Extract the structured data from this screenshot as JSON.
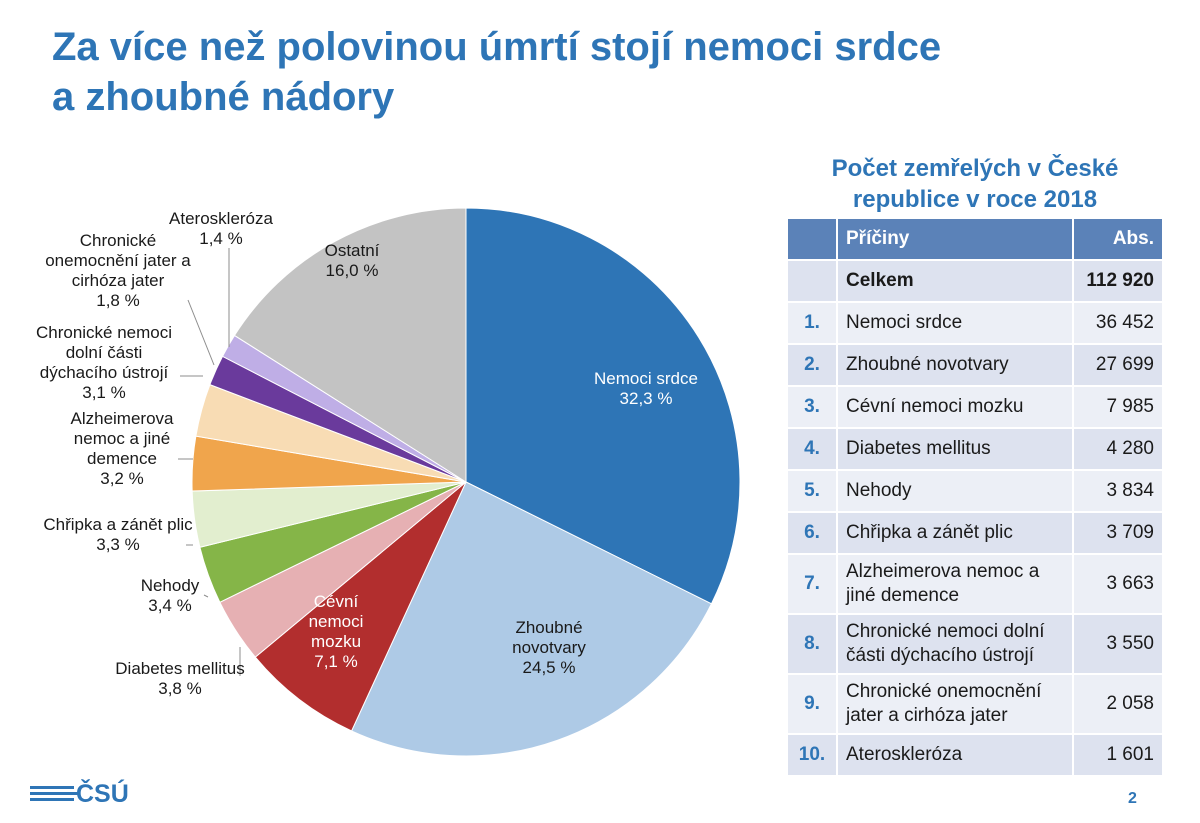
{
  "slide": {
    "title_line1": "Za více než polovinou úmrtí stojí nemoci srdce",
    "title_line2": "a zhoubné nádory",
    "logo_text": "ČSÚ",
    "page_number": "2"
  },
  "chart_data": {
    "type": "pie",
    "start": "12 o'clock, clockwise",
    "slices": [
      {
        "label": [
          "Nemoci srdce"
        ],
        "value_text": "32,3 %",
        "value": 32.3,
        "color": "#2e75b6",
        "text_color": "#ffffff",
        "label_pos": "inside"
      },
      {
        "label": [
          "Zhoubné",
          "novotvary"
        ],
        "value_text": "24,5 %",
        "value": 24.5,
        "color": "#aecae6",
        "text_color": "#1a1a1a",
        "label_pos": "inside"
      },
      {
        "label": [
          "Cévní",
          "nemoci",
          "mozku"
        ],
        "value_text": "7,1 %",
        "value": 7.1,
        "color": "#b22e2e",
        "text_color": "#ffffff",
        "label_pos": "inside"
      },
      {
        "label": [
          "Diabetes mellitus"
        ],
        "value_text": "3,8 %",
        "value": 3.8,
        "color": "#e6b0b3",
        "text_color": "#1a1a1a",
        "label_pos": "outside"
      },
      {
        "label": [
          "Nehody"
        ],
        "value_text": "3,4 %",
        "value": 3.4,
        "color": "#85b548",
        "text_color": "#1a1a1a",
        "label_pos": "outside"
      },
      {
        "label": [
          "Chřipka a zánět plic"
        ],
        "value_text": "3,3 %",
        "value": 3.3,
        "color": "#e2eecf",
        "text_color": "#1a1a1a",
        "label_pos": "outside"
      },
      {
        "label": [
          "Alzheimerova",
          "nemoc a jiné",
          "demence"
        ],
        "value_text": "3,2 %",
        "value": 3.2,
        "color": "#f0a54c",
        "text_color": "#1a1a1a",
        "label_pos": "outside"
      },
      {
        "label": [
          "Chronické nemoci",
          "dolní části",
          "dýchacího ústrojí"
        ],
        "value_text": "3,1 %",
        "value": 3.1,
        "color": "#f8dcb4",
        "text_color": "#1a1a1a",
        "label_pos": "outside"
      },
      {
        "label": [
          "Chronické",
          "onemocnění jater a",
          "cirhóza jater"
        ],
        "value_text": "1,8 %",
        "value": 1.8,
        "color": "#6a3a9c",
        "text_color": "#1a1a1a",
        "label_pos": "outside"
      },
      {
        "label": [
          "Ateroskleróza"
        ],
        "value_text": "1,4 %",
        "value": 1.4,
        "color": "#bfaee6",
        "text_color": "#1a1a1a",
        "label_pos": "outside"
      },
      {
        "label": [
          "Ostatní"
        ],
        "value_text": "16,0 %",
        "value": 16.0,
        "color": "#c3c3c3",
        "text_color": "#1a1a1a",
        "label_pos": "inside"
      }
    ]
  },
  "table": {
    "title_line1": "Počet zemřelých v České",
    "title_line2": "republice v roce 2018",
    "headers": {
      "num": "",
      "cause": "Příčiny",
      "abs": "Abs."
    },
    "total": {
      "num": "",
      "cause": "Celkem",
      "value": "112 920"
    },
    "rows": [
      {
        "num": "1.",
        "cause": "Nemoci srdce",
        "value": "36 452"
      },
      {
        "num": "2.",
        "cause": "Zhoubné novotvary",
        "value": "27 699"
      },
      {
        "num": "3.",
        "cause": "Cévní nemoci mozku",
        "value": "7 985"
      },
      {
        "num": "4.",
        "cause": "Diabetes mellitus",
        "value": "4 280"
      },
      {
        "num": "5.",
        "cause": "Nehody",
        "value": "3 834"
      },
      {
        "num": "6.",
        "cause": "Chřipka a zánět plic",
        "value": "3 709"
      },
      {
        "num": "7.",
        "cause": "Alzheimerova nemoc a jiné demence",
        "value": "3 663"
      },
      {
        "num": "8.",
        "cause": "Chronické nemoci dolní části dýchacího ústrojí",
        "value": "3 550"
      },
      {
        "num": "9.",
        "cause": "Chronické onemocnění jater a cirhóza jater",
        "value": "2 058"
      },
      {
        "num": "10.",
        "cause": "Ateroskleróza",
        "value": "1 601"
      }
    ]
  }
}
